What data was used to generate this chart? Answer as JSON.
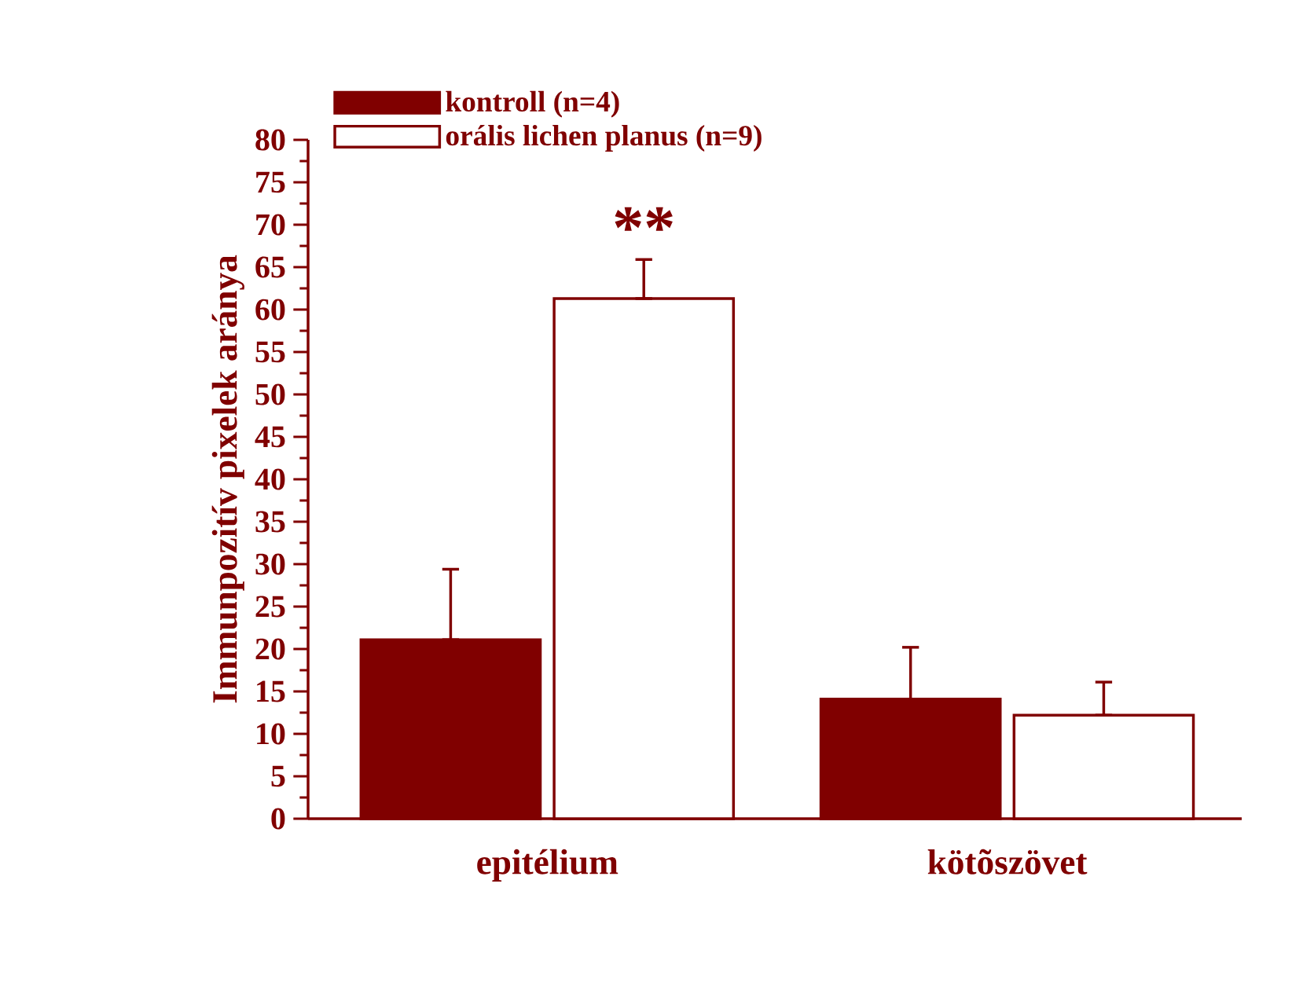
{
  "chart_data": {
    "type": "bar",
    "ylabel": "Immunpozitív pixelek aránya",
    "categories": [
      "epitélium",
      "kötõszövet"
    ],
    "series": [
      {
        "name": "kontroll (n=4)",
        "color": "#800000",
        "values": [
          21.1,
          14.1
        ],
        "errors": [
          [
            21.1,
            29.4
          ],
          [
            14.1,
            20.2
          ]
        ]
      },
      {
        "name": "orális lichen planus (n=9)",
        "color": "#ffffff",
        "values": [
          61.3,
          12.2
        ],
        "errors": [
          [
            61.3,
            65.9
          ],
          [
            12.2,
            16.1
          ]
        ]
      }
    ],
    "ylim": [
      0,
      80
    ],
    "yticks": [
      0,
      5,
      10,
      15,
      20,
      25,
      30,
      35,
      40,
      45,
      50,
      55,
      60,
      65,
      70,
      75,
      80
    ],
    "annotations": [
      "**"
    ],
    "grid": false,
    "legend": "top left"
  }
}
